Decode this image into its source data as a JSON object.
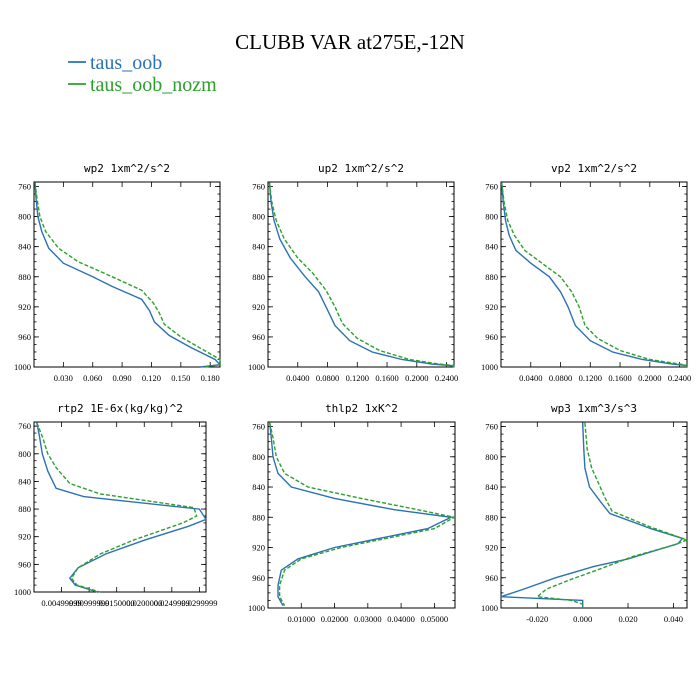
{
  "figure": {
    "title": "CLUBB VAR at275E,-12N",
    "legend": [
      {
        "label": "taus_oob",
        "color": "#2a72b5",
        "dash": "solid"
      },
      {
        "label": "taus_oob_nozm",
        "color": "#2ca02c",
        "dash": "dashed"
      }
    ]
  },
  "chart_data": [
    {
      "type": "line",
      "title": "wp2  1xm^2/s^2",
      "xlim": [
        0,
        0.19
      ],
      "xticks": [
        0.03,
        0.06,
        0.09,
        0.12,
        0.15,
        0.18
      ],
      "xtick_labels": [
        "0.030",
        "0.060",
        "0.090",
        "0.120",
        "0.150",
        "0.180"
      ],
      "ylim": [
        1000,
        754
      ],
      "yticks": [
        760,
        800,
        840,
        880,
        920,
        960,
        1000
      ],
      "series": [
        {
          "name": "taus_oob",
          "color": "#2a72b5",
          "dash": "solid",
          "points": [
            [
              0.001,
              755
            ],
            [
              0.002,
              775
            ],
            [
              0.004,
              800
            ],
            [
              0.008,
              820
            ],
            [
              0.015,
              842
            ],
            [
              0.03,
              862
            ],
            [
              0.06,
              880
            ],
            [
              0.08,
              893
            ],
            [
              0.11,
              910
            ],
            [
              0.118,
              925
            ],
            [
              0.123,
              940
            ],
            [
              0.138,
              958
            ],
            [
              0.16,
              974
            ],
            [
              0.185,
              990
            ],
            [
              0.19,
              997
            ],
            [
              0.17,
              1000
            ]
          ]
        },
        {
          "name": "taus_oob_nozm",
          "color": "#2ca02c",
          "dash": "dashed",
          "points": [
            [
              0.001,
              755
            ],
            [
              0.003,
              775
            ],
            [
              0.006,
              800
            ],
            [
              0.012,
              820
            ],
            [
              0.025,
              842
            ],
            [
              0.045,
              860
            ],
            [
              0.08,
              880
            ],
            [
              0.11,
              898
            ],
            [
              0.122,
              915
            ],
            [
              0.128,
              928
            ],
            [
              0.133,
              943
            ],
            [
              0.15,
              960
            ],
            [
              0.17,
              975
            ],
            [
              0.19,
              990
            ],
            [
              0.19,
              997
            ],
            [
              0.175,
              1000
            ]
          ]
        }
      ]
    },
    {
      "type": "line",
      "title": "up2  1xm^2/s^2",
      "xlim": [
        0,
        0.25
      ],
      "xticks": [
        0.04,
        0.08,
        0.12,
        0.16,
        0.2,
        0.24
      ],
      "xtick_labels": [
        "0.0400",
        "0.0800",
        "0.1200",
        "0.1600",
        "0.2000",
        "0.2400"
      ],
      "ylim": [
        1000,
        754
      ],
      "yticks": [
        760,
        800,
        840,
        880,
        920,
        960,
        1000
      ],
      "series": [
        {
          "name": "taus_oob",
          "color": "#2a72b5",
          "dash": "solid",
          "points": [
            [
              0.002,
              755
            ],
            [
              0.004,
              780
            ],
            [
              0.008,
              805
            ],
            [
              0.016,
              830
            ],
            [
              0.03,
              855
            ],
            [
              0.05,
              880
            ],
            [
              0.068,
              900
            ],
            [
              0.078,
              920
            ],
            [
              0.09,
              945
            ],
            [
              0.11,
              965
            ],
            [
              0.14,
              980
            ],
            [
              0.18,
              990
            ],
            [
              0.22,
              996
            ],
            [
              0.245,
              998
            ],
            [
              0.25,
              1000
            ]
          ]
        },
        {
          "name": "taus_oob_nozm",
          "color": "#2ca02c",
          "dash": "dashed",
          "points": [
            [
              0.002,
              755
            ],
            [
              0.005,
              780
            ],
            [
              0.011,
              805
            ],
            [
              0.022,
              830
            ],
            [
              0.04,
              855
            ],
            [
              0.06,
              875
            ],
            [
              0.078,
              898
            ],
            [
              0.09,
              920
            ],
            [
              0.1,
              942
            ],
            [
              0.12,
              962
            ],
            [
              0.15,
              978
            ],
            [
              0.19,
              990
            ],
            [
              0.23,
              996
            ],
            [
              0.25,
              998
            ],
            [
              0.25,
              1000
            ]
          ]
        }
      ]
    },
    {
      "type": "line",
      "title": "vp2  1xm^2/s^2",
      "xlim": [
        0,
        0.25
      ],
      "xticks": [
        0.04,
        0.08,
        0.12,
        0.16,
        0.2,
        0.24
      ],
      "xtick_labels": [
        "0.0400",
        "0.0800",
        "0.1200",
        "0.1600",
        "0.2000",
        "0.2400"
      ],
      "ylim": [
        1000,
        754
      ],
      "yticks": [
        760,
        800,
        840,
        880,
        920,
        960,
        1000
      ],
      "series": [
        {
          "name": "taus_oob",
          "color": "#2a72b5",
          "dash": "solid",
          "points": [
            [
              0.001,
              755
            ],
            [
              0.003,
              780
            ],
            [
              0.006,
              805
            ],
            [
              0.011,
              825
            ],
            [
              0.02,
              845
            ],
            [
              0.04,
              862
            ],
            [
              0.065,
              880
            ],
            [
              0.08,
              900
            ],
            [
              0.09,
              920
            ],
            [
              0.1,
              945
            ],
            [
              0.12,
              965
            ],
            [
              0.15,
              980
            ],
            [
              0.19,
              990
            ],
            [
              0.23,
              996
            ],
            [
              0.25,
              998
            ],
            [
              0.25,
              1000
            ]
          ]
        },
        {
          "name": "taus_oob_nozm",
          "color": "#2ca02c",
          "dash": "dashed",
          "points": [
            [
              0.001,
              755
            ],
            [
              0.004,
              780
            ],
            [
              0.009,
              805
            ],
            [
              0.018,
              825
            ],
            [
              0.032,
              845
            ],
            [
              0.055,
              862
            ],
            [
              0.08,
              880
            ],
            [
              0.095,
              900
            ],
            [
              0.105,
              920
            ],
            [
              0.113,
              945
            ],
            [
              0.13,
              962
            ],
            [
              0.16,
              978
            ],
            [
              0.2,
              990
            ],
            [
              0.24,
              996
            ],
            [
              0.25,
              998
            ],
            [
              0.25,
              1000
            ]
          ]
        }
      ]
    },
    {
      "type": "line",
      "title": "rtp2  1E-6x(kg/kg)^2",
      "xlim": [
        0,
        0.0312
      ],
      "xticks": [
        0.01,
        0.02,
        0.03
      ],
      "xtick_labels": [
        "0.00999999",
        "0.0200000",
        "0.0299999"
      ],
      "xticks_minor": [
        0.005,
        0.015,
        0.025
      ],
      "xtick_labels_minor": [
        "0.00499999",
        "0.0150000",
        "0.0249999"
      ],
      "ylim": [
        1000,
        754
      ],
      "yticks": [
        760,
        800,
        840,
        880,
        920,
        960,
        1000
      ],
      "series": [
        {
          "name": "taus_oob",
          "color": "#2a72b5",
          "dash": "solid",
          "points": [
            [
              0.0005,
              755
            ],
            [
              0.001,
              775
            ],
            [
              0.0015,
              800
            ],
            [
              0.0025,
              825
            ],
            [
              0.004,
              850
            ],
            [
              0.009,
              862
            ],
            [
              0.03,
              880
            ],
            [
              0.0312,
              895
            ],
            [
              0.028,
              905
            ],
            [
              0.02,
              925
            ],
            [
              0.013,
              945
            ],
            [
              0.008,
              965
            ],
            [
              0.0065,
              980
            ],
            [
              0.0075,
              990
            ],
            [
              0.0115,
              1000
            ]
          ]
        },
        {
          "name": "taus_oob_nozm",
          "color": "#2ca02c",
          "dash": "dashed",
          "points": [
            [
              0.0005,
              755
            ],
            [
              0.0015,
              775
            ],
            [
              0.0025,
              800
            ],
            [
              0.004,
              820
            ],
            [
              0.0065,
              843
            ],
            [
              0.012,
              858
            ],
            [
              0.029,
              878
            ],
            [
              0.0295,
              890
            ],
            [
              0.027,
              900
            ],
            [
              0.018,
              925
            ],
            [
              0.012,
              945
            ],
            [
              0.008,
              965
            ],
            [
              0.0068,
              980
            ],
            [
              0.0078,
              990
            ],
            [
              0.012,
              1000
            ]
          ]
        }
      ]
    },
    {
      "type": "line",
      "title": "thlp2  1xK^2",
      "xlim": [
        0,
        0.0562
      ],
      "xticks": [
        0.01,
        0.02,
        0.03,
        0.04,
        0.05
      ],
      "xtick_labels": [
        "0.01000",
        "0.02000",
        "0.03000",
        "0.04000",
        "0.05000"
      ],
      "ylim": [
        1000,
        754
      ],
      "yticks": [
        760,
        800,
        840,
        880,
        920,
        960,
        1000
      ],
      "series": [
        {
          "name": "taus_oob",
          "color": "#2a72b5",
          "dash": "solid",
          "points": [
            [
              0.0005,
              755
            ],
            [
              0.001,
              775
            ],
            [
              0.0015,
              800
            ],
            [
              0.003,
              822
            ],
            [
              0.007,
              840
            ],
            [
              0.02,
              855
            ],
            [
              0.038,
              870
            ],
            [
              0.055,
              880
            ],
            [
              0.048,
              895
            ],
            [
              0.02,
              920
            ],
            [
              0.009,
              935
            ],
            [
              0.004,
              950
            ],
            [
              0.003,
              970
            ],
            [
              0.003,
              985
            ],
            [
              0.0045,
              997
            ]
          ]
        },
        {
          "name": "taus_oob_nozm",
          "color": "#2ca02c",
          "dash": "dashed",
          "points": [
            [
              0.0005,
              755
            ],
            [
              0.0015,
              775
            ],
            [
              0.0025,
              800
            ],
            [
              0.005,
              822
            ],
            [
              0.012,
              840
            ],
            [
              0.028,
              855
            ],
            [
              0.045,
              870
            ],
            [
              0.056,
              880
            ],
            [
              0.05,
              895
            ],
            [
              0.022,
              920
            ],
            [
              0.01,
              935
            ],
            [
              0.005,
              950
            ],
            [
              0.0035,
              970
            ],
            [
              0.0035,
              985
            ],
            [
              0.005,
              997
            ]
          ]
        }
      ]
    },
    {
      "type": "line",
      "title": "wp3  1xm^3/s^3",
      "xlim": [
        -0.036,
        0.046
      ],
      "xticks": [
        -0.02,
        0.0,
        0.02,
        0.04
      ],
      "xtick_labels": [
        "-0.020",
        "0.000",
        "0.020",
        "0.040"
      ],
      "ylim": [
        1000,
        754
      ],
      "yticks": [
        760,
        800,
        840,
        880,
        920,
        960,
        1000
      ],
      "series": [
        {
          "name": "taus_oob",
          "color": "#2a72b5",
          "dash": "solid",
          "points": [
            [
              0.0,
              755
            ],
            [
              0.0005,
              790
            ],
            [
              0.001,
              815
            ],
            [
              0.003,
              840
            ],
            [
              0.008,
              860
            ],
            [
              0.012,
              875
            ],
            [
              0.03,
              895
            ],
            [
              0.044,
              908
            ],
            [
              0.042,
              915
            ],
            [
              0.02,
              935
            ],
            [
              0.005,
              945
            ],
            [
              -0.012,
              960
            ],
            [
              -0.026,
              975
            ],
            [
              -0.036,
              985
            ],
            [
              0.0,
              990
            ],
            [
              0.0,
              1000
            ]
          ]
        },
        {
          "name": "taus_oob_nozm",
          "color": "#2ca02c",
          "dash": "dashed",
          "points": [
            [
              0.001,
              755
            ],
            [
              0.002,
              790
            ],
            [
              0.004,
              815
            ],
            [
              0.007,
              835
            ],
            [
              0.01,
              855
            ],
            [
              0.013,
              872
            ],
            [
              0.03,
              893
            ],
            [
              0.046,
              910
            ],
            [
              0.04,
              917
            ],
            [
              0.022,
              932
            ],
            [
              0.008,
              948
            ],
            [
              -0.005,
              962
            ],
            [
              -0.016,
              975
            ],
            [
              -0.02,
              985
            ],
            [
              -0.005,
              990
            ],
            [
              0.0,
              995
            ],
            [
              0.0,
              1000
            ]
          ]
        }
      ]
    }
  ]
}
